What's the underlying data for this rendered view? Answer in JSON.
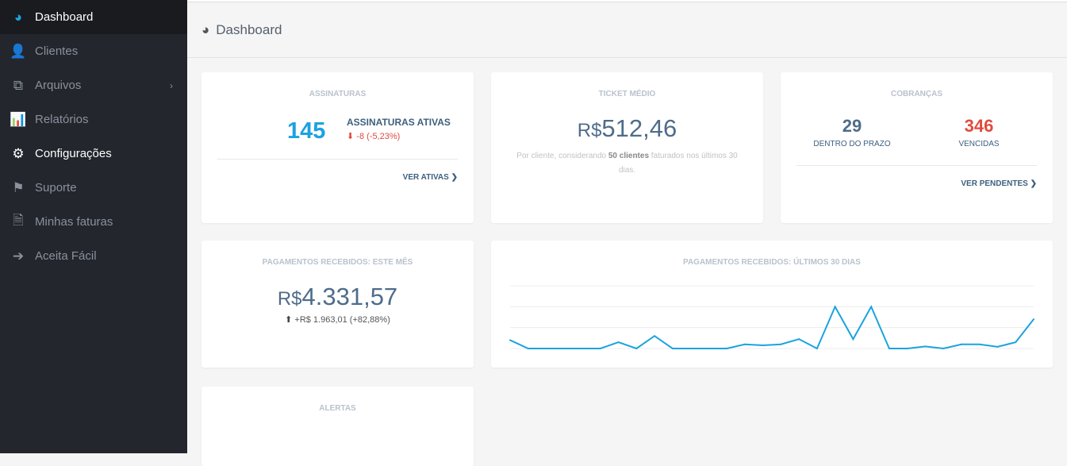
{
  "sidebar": {
    "items": [
      {
        "label": "Dashboard",
        "icon": "dashboard-icon"
      },
      {
        "label": "Clientes",
        "icon": "user-icon"
      },
      {
        "label": "Arquivos",
        "icon": "files-icon"
      },
      {
        "label": "Relatórios",
        "icon": "bar-chart-icon"
      },
      {
        "label": "Configurações",
        "icon": "gears-icon"
      },
      {
        "label": "Suporte",
        "icon": "flag-icon"
      },
      {
        "label": "Minhas faturas",
        "icon": "document-icon"
      },
      {
        "label": "Aceita Fácil",
        "icon": "sign-in-icon"
      }
    ]
  },
  "header": {
    "title": "Dashboard"
  },
  "assinaturas": {
    "title": "ASSINATURAS",
    "count": "145",
    "label": "ASSINATURAS ATIVAS",
    "change": "-8 (-5,23%)",
    "link": "VER ATIVAS"
  },
  "ticket": {
    "title": "TICKET MÉDIO",
    "currency": "R$",
    "value": "512,46",
    "note_pre": "Por cliente, considerando ",
    "note_bold": "50 clientes",
    "note_post": " faturados nos últimos 30 dias."
  },
  "cobrancas": {
    "title": "COBRANÇAS",
    "ok_value": "29",
    "ok_label": "DENTRO DO PRAZO",
    "late_value": "346",
    "late_label": "VENCIDAS",
    "link": "VER PENDENTES"
  },
  "pagamentos_mes": {
    "title": "PAGAMENTOS RECEBIDOS: ESTE MÊS",
    "currency": "R$",
    "value": "4.331,57",
    "change": "+R$ 1.963,01 (+82,88%)"
  },
  "alertas": {
    "title": "ALERTAS"
  },
  "colors": {
    "accent": "#1ba3e0",
    "danger": "#e04b3f",
    "text": "#4f6c8a"
  },
  "chart_data": {
    "type": "line",
    "title": "PAGAMENTOS RECEBIDOS: ÚLTIMOS 30 DIAS",
    "ylim": [
      0,
      3
    ],
    "grid": true,
    "values": [
      0.4,
      0,
      0,
      0,
      0,
      0,
      0.3,
      0,
      0.6,
      0,
      0,
      0,
      0,
      0.2,
      0.15,
      0.2,
      0.45,
      0,
      2,
      0.45,
      2,
      0,
      0,
      0.1,
      0,
      0.2,
      0.2,
      0.08,
      0.3,
      1.4
    ]
  }
}
